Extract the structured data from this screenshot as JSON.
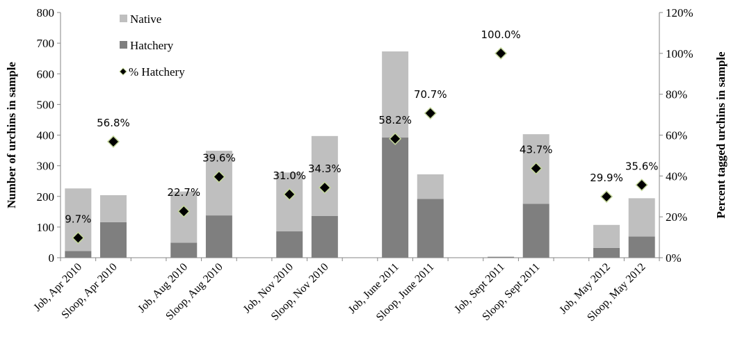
{
  "chart_data": {
    "type": "bar",
    "stacked": true,
    "categories": [
      "Job, Apr 2010",
      "Sloop, Apr 2010",
      "",
      "Job, Aug 2010",
      "Sloop, Aug 2010",
      "",
      "Job, Nov 2010",
      "Sloop, Nov 2010",
      "",
      "Job, June 2011",
      "Sloop, June 2011",
      "",
      "Job, Sept 2011",
      "Sloop, Sept 2011",
      "",
      "Job, May 2012",
      "Sloop, May 2012"
    ],
    "series": [
      {
        "name": "Hatchery",
        "axis": "left",
        "color": "#7f7f7f",
        "values": [
          22,
          116,
          null,
          49,
          138,
          null,
          86,
          136,
          null,
          392,
          192,
          null,
          3,
          176,
          null,
          32,
          69
        ]
      },
      {
        "name": "Native",
        "axis": "left",
        "color": "#bfbfbf",
        "values": [
          204,
          88,
          null,
          167,
          211,
          null,
          192,
          261,
          null,
          281,
          80,
          null,
          0,
          227,
          null,
          75,
          125
        ]
      },
      {
        "name": "% Hatchery",
        "type": "scatter",
        "axis": "right",
        "color": "#000000",
        "edge_color": "#c4d79b",
        "values": [
          9.7,
          56.8,
          null,
          22.7,
          39.6,
          null,
          31.0,
          34.3,
          null,
          58.2,
          70.7,
          null,
          100.0,
          43.7,
          null,
          29.9,
          35.6
        ],
        "labels": [
          "9.7%",
          "56.8%",
          "",
          "22.7%",
          "39.6%",
          "",
          "31.0%",
          "34.3%",
          "",
          "58.2%",
          "70.7%",
          "",
          "100.0%",
          "43.7%",
          "",
          "29.9%",
          "35.6%"
        ]
      }
    ],
    "legend_order": [
      "Native",
      "Hatchery",
      "% Hatchery"
    ],
    "legend_position": "top-left",
    "ylabel": "Number of urchins in sample",
    "y2label": "Percent tagged  urchins in sample",
    "ylim": [
      0,
      800
    ],
    "y_ticks": [
      "0",
      "100",
      "200",
      "300",
      "400",
      "500",
      "600",
      "700",
      "800"
    ],
    "y2lim": [
      0,
      120
    ],
    "y2_ticks": [
      "0%",
      "20%",
      "40%",
      "60%",
      "80%",
      "100%",
      "120%"
    ],
    "grid": false
  }
}
